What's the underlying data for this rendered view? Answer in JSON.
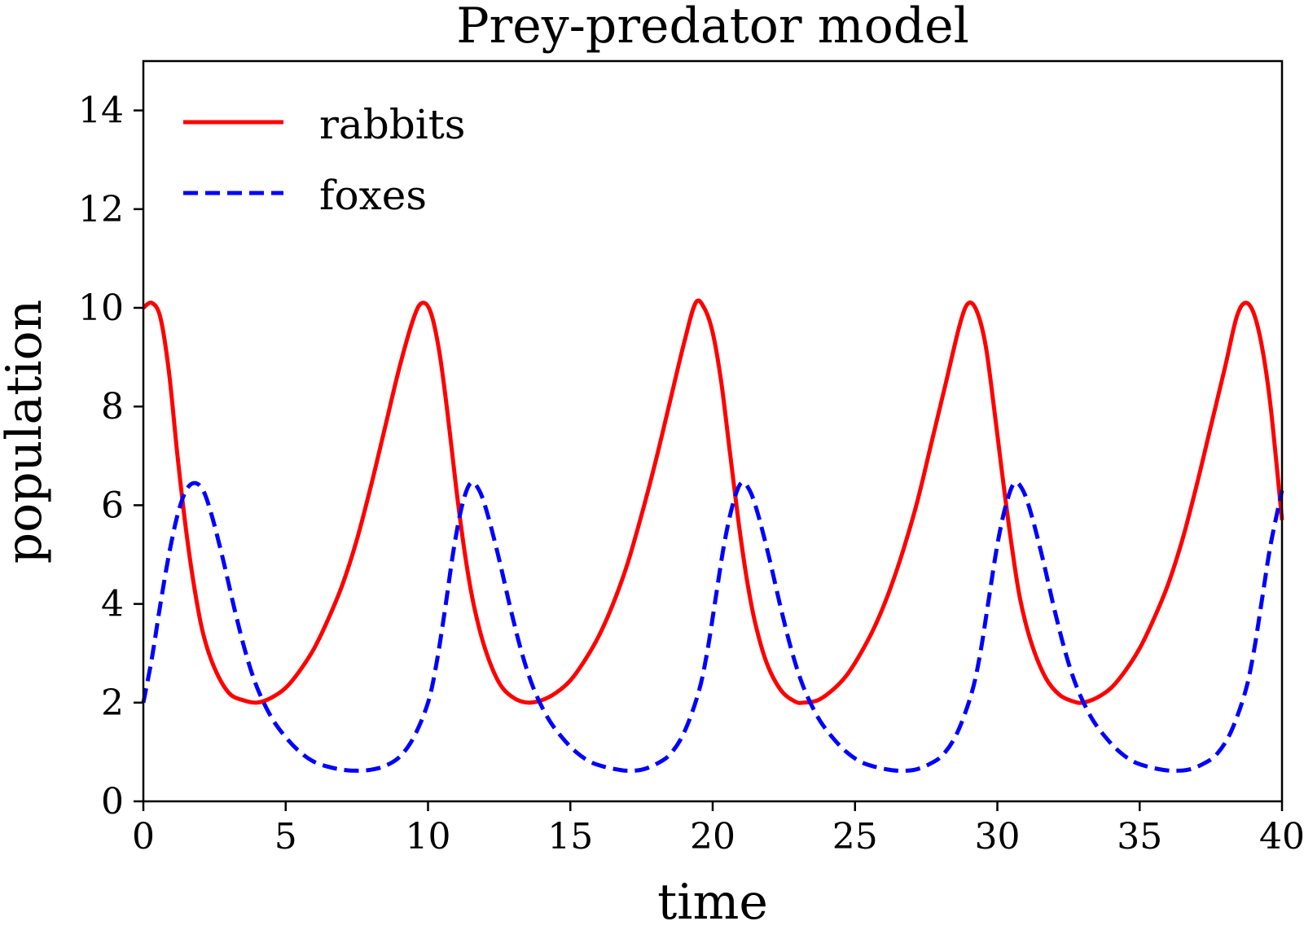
{
  "chart_data": {
    "type": "line",
    "title": "Prey-predator model",
    "xlabel": "time",
    "ylabel": "population",
    "xlim": [
      0,
      40
    ],
    "ylim": [
      0,
      15
    ],
    "xticks": [
      "0",
      "5",
      "10",
      "15",
      "20",
      "25",
      "30",
      "35",
      "40"
    ],
    "yticks": [
      "0",
      "2",
      "4",
      "6",
      "8",
      "10",
      "12",
      "14"
    ],
    "grid": false,
    "legend": {
      "placement": "top-left"
    },
    "series": [
      {
        "name": "rabbits",
        "color": "#ff0000",
        "style": "solid",
        "points": [
          [
            0,
            10.0
          ],
          [
            0.3,
            10.1
          ],
          [
            0.6,
            9.8
          ],
          [
            0.9,
            8.7
          ],
          [
            1.2,
            7.0
          ],
          [
            1.5,
            5.5
          ],
          [
            1.8,
            4.3
          ],
          [
            2.1,
            3.4
          ],
          [
            2.5,
            2.7
          ],
          [
            3.0,
            2.2
          ],
          [
            3.5,
            2.05
          ],
          [
            4.0,
            2.0
          ],
          [
            4.5,
            2.1
          ],
          [
            5.0,
            2.3
          ],
          [
            5.5,
            2.65
          ],
          [
            6.0,
            3.1
          ],
          [
            6.5,
            3.7
          ],
          [
            7.0,
            4.4
          ],
          [
            7.5,
            5.3
          ],
          [
            8.0,
            6.4
          ],
          [
            8.5,
            7.6
          ],
          [
            9.0,
            8.8
          ],
          [
            9.5,
            9.8
          ],
          [
            9.8,
            10.1
          ],
          [
            10.1,
            9.9
          ],
          [
            10.4,
            9.1
          ],
          [
            10.7,
            7.8
          ],
          [
            11.0,
            6.3
          ],
          [
            11.3,
            5.0
          ],
          [
            11.6,
            4.0
          ],
          [
            12.0,
            3.1
          ],
          [
            12.5,
            2.4
          ],
          [
            13.0,
            2.1
          ],
          [
            13.5,
            2.0
          ],
          [
            14.0,
            2.05
          ],
          [
            14.5,
            2.2
          ],
          [
            15.0,
            2.45
          ],
          [
            15.5,
            2.85
          ],
          [
            16.0,
            3.35
          ],
          [
            16.5,
            4.0
          ],
          [
            17.0,
            4.8
          ],
          [
            17.5,
            5.8
          ],
          [
            18.0,
            6.9
          ],
          [
            18.5,
            8.1
          ],
          [
            19.0,
            9.3
          ],
          [
            19.4,
            10.1
          ],
          [
            19.7,
            10.0
          ],
          [
            20.0,
            9.5
          ],
          [
            20.3,
            8.5
          ],
          [
            20.6,
            7.1
          ],
          [
            20.9,
            5.7
          ],
          [
            21.2,
            4.5
          ],
          [
            21.5,
            3.6
          ],
          [
            21.9,
            2.8
          ],
          [
            22.4,
            2.25
          ],
          [
            22.9,
            2.02
          ],
          [
            23.2,
            2.0
          ],
          [
            23.7,
            2.05
          ],
          [
            24.2,
            2.25
          ],
          [
            24.7,
            2.55
          ],
          [
            25.2,
            3.0
          ],
          [
            25.7,
            3.55
          ],
          [
            26.2,
            4.25
          ],
          [
            26.7,
            5.1
          ],
          [
            27.2,
            6.1
          ],
          [
            27.7,
            7.3
          ],
          [
            28.2,
            8.5
          ],
          [
            28.7,
            9.7
          ],
          [
            29.0,
            10.1
          ],
          [
            29.3,
            9.9
          ],
          [
            29.6,
            9.2
          ],
          [
            29.9,
            7.9
          ],
          [
            30.2,
            6.5
          ],
          [
            30.5,
            5.2
          ],
          [
            30.8,
            4.1
          ],
          [
            31.2,
            3.2
          ],
          [
            31.7,
            2.5
          ],
          [
            32.2,
            2.15
          ],
          [
            32.7,
            2.02
          ],
          [
            33.0,
            2.0
          ],
          [
            33.5,
            2.1
          ],
          [
            34.0,
            2.3
          ],
          [
            34.5,
            2.65
          ],
          [
            35.0,
            3.1
          ],
          [
            35.5,
            3.7
          ],
          [
            36.0,
            4.4
          ],
          [
            36.5,
            5.3
          ],
          [
            37.0,
            6.4
          ],
          [
            37.5,
            7.6
          ],
          [
            38.0,
            8.8
          ],
          [
            38.4,
            9.8
          ],
          [
            38.7,
            10.1
          ],
          [
            39.0,
            9.9
          ],
          [
            39.3,
            9.2
          ],
          [
            39.6,
            8.0
          ],
          [
            40.0,
            5.7
          ]
        ]
      },
      {
        "name": "foxes",
        "color": "#0000ff",
        "style": "dashed",
        "points": [
          [
            0,
            2.0
          ],
          [
            0.3,
            2.9
          ],
          [
            0.6,
            4.0
          ],
          [
            0.9,
            5.0
          ],
          [
            1.2,
            5.8
          ],
          [
            1.5,
            6.3
          ],
          [
            1.8,
            6.45
          ],
          [
            2.1,
            6.3
          ],
          [
            2.4,
            5.8
          ],
          [
            2.8,
            4.9
          ],
          [
            3.2,
            3.9
          ],
          [
            3.6,
            3.0
          ],
          [
            4.0,
            2.3
          ],
          [
            4.5,
            1.7
          ],
          [
            5.0,
            1.3
          ],
          [
            5.5,
            1.0
          ],
          [
            6.0,
            0.8
          ],
          [
            6.5,
            0.7
          ],
          [
            7.0,
            0.64
          ],
          [
            7.5,
            0.62
          ],
          [
            8.0,
            0.64
          ],
          [
            8.5,
            0.72
          ],
          [
            9.0,
            0.9
          ],
          [
            9.5,
            1.3
          ],
          [
            10.0,
            2.0
          ],
          [
            10.3,
            2.8
          ],
          [
            10.6,
            3.9
          ],
          [
            10.9,
            5.1
          ],
          [
            11.2,
            6.0
          ],
          [
            11.5,
            6.45
          ],
          [
            11.8,
            6.3
          ],
          [
            12.1,
            5.8
          ],
          [
            12.5,
            4.9
          ],
          [
            12.9,
            3.9
          ],
          [
            13.3,
            3.0
          ],
          [
            13.7,
            2.3
          ],
          [
            14.2,
            1.7
          ],
          [
            14.7,
            1.3
          ],
          [
            15.2,
            1.0
          ],
          [
            15.7,
            0.8
          ],
          [
            16.2,
            0.7
          ],
          [
            16.7,
            0.64
          ],
          [
            17.0,
            0.62
          ],
          [
            17.5,
            0.64
          ],
          [
            18.0,
            0.75
          ],
          [
            18.5,
            0.95
          ],
          [
            19.0,
            1.4
          ],
          [
            19.5,
            2.2
          ],
          [
            19.8,
            3.0
          ],
          [
            20.1,
            4.1
          ],
          [
            20.4,
            5.2
          ],
          [
            20.7,
            6.0
          ],
          [
            21.0,
            6.45
          ],
          [
            21.3,
            6.3
          ],
          [
            21.6,
            5.8
          ],
          [
            22.0,
            4.9
          ],
          [
            22.4,
            3.9
          ],
          [
            22.8,
            3.0
          ],
          [
            23.2,
            2.3
          ],
          [
            23.7,
            1.7
          ],
          [
            24.2,
            1.3
          ],
          [
            24.7,
            1.0
          ],
          [
            25.2,
            0.8
          ],
          [
            25.7,
            0.7
          ],
          [
            26.2,
            0.64
          ],
          [
            26.6,
            0.62
          ],
          [
            27.1,
            0.64
          ],
          [
            27.6,
            0.75
          ],
          [
            28.1,
            0.95
          ],
          [
            28.6,
            1.4
          ],
          [
            29.1,
            2.2
          ],
          [
            29.4,
            3.0
          ],
          [
            29.7,
            4.1
          ],
          [
            30.0,
            5.2
          ],
          [
            30.3,
            6.0
          ],
          [
            30.6,
            6.45
          ],
          [
            30.9,
            6.3
          ],
          [
            31.2,
            5.8
          ],
          [
            31.6,
            4.9
          ],
          [
            32.0,
            3.9
          ],
          [
            32.4,
            3.0
          ],
          [
            32.8,
            2.3
          ],
          [
            33.3,
            1.7
          ],
          [
            33.8,
            1.3
          ],
          [
            34.3,
            1.0
          ],
          [
            34.8,
            0.8
          ],
          [
            35.3,
            0.7
          ],
          [
            35.8,
            0.64
          ],
          [
            36.2,
            0.62
          ],
          [
            36.7,
            0.64
          ],
          [
            37.2,
            0.75
          ],
          [
            37.7,
            0.95
          ],
          [
            38.2,
            1.4
          ],
          [
            38.7,
            2.2
          ],
          [
            39.0,
            3.0
          ],
          [
            39.3,
            4.1
          ],
          [
            39.6,
            5.2
          ],
          [
            40.0,
            6.3
          ]
        ]
      }
    ]
  }
}
